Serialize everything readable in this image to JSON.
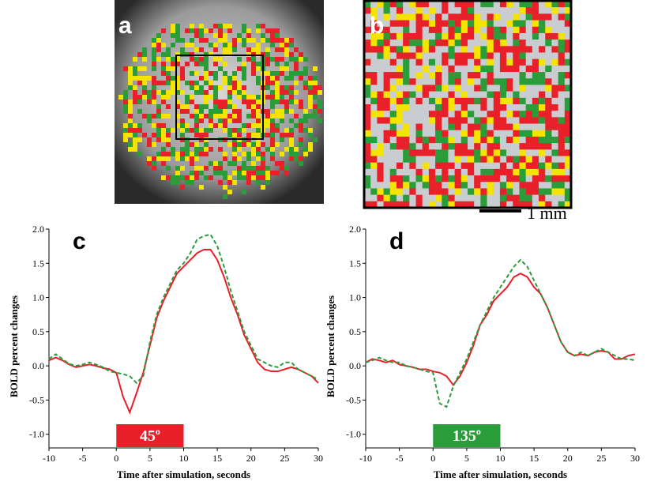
{
  "panels": {
    "a": "a",
    "b": "b"
  },
  "scale_bar": "1 mm",
  "chart_data": [
    {
      "type": "line",
      "title": "c",
      "xlabel": "Time after simulation, seconds",
      "ylabel": "BOLD percent changes",
      "x": [
        -10,
        -9,
        -8,
        -7,
        -6,
        -5,
        -4,
        -3,
        -2,
        -1,
        0,
        1,
        2,
        3,
        4,
        5,
        6,
        7,
        8,
        9,
        10,
        11,
        12,
        13,
        14,
        15,
        16,
        17,
        18,
        19,
        20,
        21,
        22,
        23,
        24,
        25,
        26,
        27,
        28,
        29,
        30
      ],
      "series": [
        {
          "color": "#e8202a",
          "linestyle": "solid",
          "values": [
            0.08,
            0.12,
            0.08,
            0.02,
            -0.02,
            0.0,
            0.02,
            0.0,
            -0.03,
            -0.05,
            -0.1,
            -0.45,
            -0.68,
            -0.4,
            -0.1,
            0.3,
            0.7,
            0.95,
            1.15,
            1.35,
            1.45,
            1.55,
            1.65,
            1.7,
            1.7,
            1.55,
            1.3,
            1.0,
            0.75,
            0.45,
            0.25,
            0.05,
            -0.05,
            -0.08,
            -0.08,
            -0.05,
            -0.02,
            -0.05,
            -0.1,
            -0.15,
            -0.25
          ]
        },
        {
          "color": "#2a9d3a",
          "linestyle": "dashed",
          "values": [
            0.1,
            0.17,
            0.1,
            0.03,
            0.0,
            0.02,
            0.05,
            0.02,
            -0.02,
            -0.08,
            -0.1,
            -0.12,
            -0.15,
            -0.25,
            -0.15,
            0.35,
            0.75,
            1.0,
            1.2,
            1.4,
            1.5,
            1.65,
            1.85,
            1.9,
            1.92,
            1.75,
            1.45,
            1.1,
            0.8,
            0.5,
            0.3,
            0.1,
            0.05,
            0.0,
            -0.02,
            0.05,
            0.05,
            -0.05,
            -0.1,
            -0.15,
            -0.2
          ]
        }
      ],
      "xlim": [
        -10,
        30
      ],
      "ylim": [
        -1.2,
        2.0
      ],
      "xticks": [
        -10,
        -5,
        0,
        5,
        10,
        15,
        20,
        25,
        30
      ],
      "yticks": [
        {
          "value": 2,
          "label": "2.0"
        },
        1.5,
        {
          "value": 1,
          "label": "1.0"
        },
        0.5,
        {
          "value": 0,
          "label": "0.0"
        },
        -0.5,
        {
          "value": -1,
          "label": "-1.0"
        }
      ],
      "stimulus": {
        "label": "45",
        "degree": "o",
        "start": 0,
        "end": 10,
        "color": "#e8202a"
      }
    },
    {
      "type": "line",
      "title": "d",
      "xlabel": "Time after simulation, seconds",
      "ylabel": "BOLD percent changes",
      "x": [
        -10,
        -9,
        -8,
        -7,
        -6,
        -5,
        -4,
        -3,
        -2,
        -1,
        0,
        1,
        2,
        3,
        4,
        5,
        6,
        7,
        8,
        9,
        10,
        11,
        12,
        13,
        14,
        15,
        16,
        17,
        18,
        19,
        20,
        21,
        22,
        23,
        24,
        25,
        26,
        27,
        28,
        29,
        30
      ],
      "series": [
        {
          "color": "#e8202a",
          "linestyle": "solid",
          "values": [
            0.05,
            0.1,
            0.08,
            0.05,
            0.08,
            0.02,
            0.0,
            -0.02,
            -0.05,
            -0.05,
            -0.08,
            -0.1,
            -0.15,
            -0.28,
            -0.15,
            0.05,
            0.3,
            0.6,
            0.75,
            0.95,
            1.05,
            1.15,
            1.3,
            1.35,
            1.3,
            1.15,
            1.05,
            0.85,
            0.6,
            0.35,
            0.2,
            0.15,
            0.17,
            0.15,
            0.2,
            0.22,
            0.2,
            0.1,
            0.1,
            0.15,
            0.17
          ]
        },
        {
          "color": "#2a9d3a",
          "linestyle": "dashed",
          "values": [
            0.05,
            0.08,
            0.12,
            0.08,
            0.05,
            0.05,
            0.0,
            -0.02,
            -0.05,
            -0.08,
            -0.1,
            -0.55,
            -0.6,
            -0.3,
            -0.1,
            0.1,
            0.35,
            0.6,
            0.8,
            1.0,
            1.15,
            1.3,
            1.45,
            1.55,
            1.45,
            1.25,
            1.05,
            0.85,
            0.6,
            0.35,
            0.2,
            0.15,
            0.2,
            0.15,
            0.2,
            0.25,
            0.2,
            0.15,
            0.1,
            0.1,
            0.08
          ]
        }
      ],
      "xlim": [
        -10,
        30
      ],
      "ylim": [
        -1.2,
        2.0
      ],
      "xticks": [
        -10,
        -5,
        0,
        5,
        10,
        15,
        20,
        25,
        30
      ],
      "yticks": [
        {
          "value": 2,
          "label": "2.0"
        },
        1.5,
        {
          "value": 1,
          "label": "1.0"
        },
        0.5,
        {
          "value": 0,
          "label": "0.0"
        },
        -0.5,
        {
          "value": -1,
          "label": "-1.0"
        }
      ],
      "stimulus": {
        "label": "135",
        "degree": "o",
        "start": 0,
        "end": 10,
        "color": "#2a9d3a"
      }
    }
  ]
}
